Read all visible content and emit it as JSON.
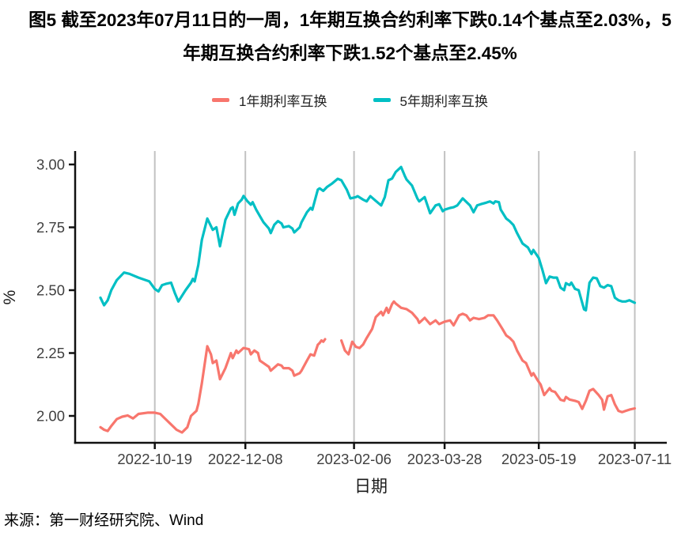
{
  "title": "图5  截至2023年07月11日的一周，1年期互换合约利率下跌0.14个基点至2.03%，5年期互换合约利率下跌1.52个基点至2.45%",
  "legend": [
    {
      "label": "1年期利率互换",
      "color": "#F8766D"
    },
    {
      "label": "5年期利率互换",
      "color": "#00BFC4"
    }
  ],
  "source": "来源：第一财经研究院、Wind",
  "chart_data": {
    "type": "line",
    "title": "图5 截至2023年07月11日的一周，1年期互换合约利率下跌0.14个基点至2.03%，5年期互换合约利率下跌1.52个基点至2.45%",
    "xlabel": "日期",
    "ylabel": "%",
    "ylim": [
      1.89,
      3.05
    ],
    "grid": "vertical-only",
    "grid_color": "#c2c2c2",
    "axis_color": "#111111",
    "tick_label_color": "#3f3f3f",
    "legend_position": "top-center",
    "y_ticks": [
      3.0,
      2.75,
      2.5,
      2.25,
      2.0
    ],
    "x_note": "t = days since 2022-09-19 (left edge of data); tick dates read off axis",
    "x_ticks": [
      {
        "t": 30,
        "label": "2022-10-19"
      },
      {
        "t": 80,
        "label": "2022-12-08"
      },
      {
        "t": 140,
        "label": "2023-02-06"
      },
      {
        "t": 190,
        "label": "2023-03-28"
      },
      {
        "t": 242,
        "label": "2023-05-19"
      },
      {
        "t": 295,
        "label": "2023-07-11"
      }
    ],
    "series": [
      {
        "id": "swap-1y",
        "name": "1年期利率互换",
        "color": "#F8766D",
        "last_value": 2.03,
        "weekly_change_bp": -0.14,
        "segments": [
          [
            [
              0,
              1.955
            ],
            [
              2,
              1.945
            ],
            [
              4,
              1.94
            ],
            [
              6,
              1.96
            ],
            [
              9,
              1.987
            ],
            [
              12,
              1.997
            ],
            [
              14,
              2.0
            ],
            [
              15,
              2.002
            ],
            [
              18,
              1.99
            ],
            [
              21,
              2.008
            ],
            [
              26,
              2.013
            ],
            [
              30,
              2.013
            ],
            [
              33,
              2.008
            ],
            [
              36,
              1.987
            ],
            [
              39,
              1.966
            ],
            [
              42,
              1.945
            ],
            [
              45,
              1.934
            ],
            [
              48,
              1.955
            ],
            [
              50,
              2.0
            ],
            [
              53,
              2.02
            ],
            [
              54,
              2.047
            ],
            [
              56,
              2.13
            ],
            [
              59,
              2.277
            ],
            [
              61,
              2.245
            ],
            [
              62,
              2.21
            ],
            [
              64,
              2.22
            ],
            [
              66,
              2.146
            ],
            [
              69,
              2.19
            ],
            [
              72,
              2.25
            ],
            [
              73,
              2.23
            ],
            [
              75,
              2.26
            ],
            [
              76,
              2.25
            ],
            [
              79,
              2.27
            ],
            [
              82,
              2.265
            ],
            [
              83,
              2.245
            ],
            [
              85,
              2.26
            ],
            [
              87,
              2.25
            ],
            [
              88,
              2.22
            ],
            [
              90,
              2.21
            ],
            [
              93,
              2.195
            ],
            [
              94,
              2.18
            ],
            [
              98,
              2.205
            ],
            [
              100,
              2.2
            ],
            [
              101,
              2.19
            ],
            [
              104,
              2.19
            ],
            [
              106,
              2.18
            ],
            [
              107,
              2.16
            ],
            [
              110,
              2.17
            ],
            [
              111,
              2.18
            ],
            [
              114,
              2.22
            ],
            [
              116,
              2.245
            ],
            [
              118,
              2.24
            ],
            [
              120,
              2.283
            ],
            [
              121,
              2.29
            ],
            [
              122,
              2.3
            ],
            [
              123,
              2.295
            ],
            [
              124,
              2.305
            ]
          ],
          [
            [
              133,
              2.3
            ],
            [
              135,
              2.26
            ],
            [
              137,
              2.245
            ],
            [
              139,
              2.295
            ],
            [
              141,
              2.275
            ],
            [
              143,
              2.27
            ],
            [
              145,
              2.284
            ],
            [
              147,
              2.31
            ],
            [
              150,
              2.346
            ],
            [
              152,
              2.393
            ],
            [
              155,
              2.414
            ],
            [
              156,
              2.4
            ],
            [
              158,
              2.43
            ],
            [
              159,
              2.41
            ],
            [
              161,
              2.445
            ],
            [
              162,
              2.455
            ],
            [
              163,
              2.447
            ],
            [
              166,
              2.43
            ],
            [
              169,
              2.425
            ],
            [
              172,
              2.41
            ],
            [
              175,
              2.385
            ],
            [
              176,
              2.37
            ],
            [
              179,
              2.39
            ],
            [
              182,
              2.365
            ],
            [
              185,
              2.38
            ],
            [
              187,
              2.365
            ],
            [
              190,
              2.375
            ],
            [
              193,
              2.38
            ],
            [
              195,
              2.36
            ],
            [
              198,
              2.4
            ],
            [
              200,
              2.406
            ],
            [
              202,
              2.4
            ],
            [
              204,
              2.38
            ],
            [
              206,
              2.39
            ],
            [
              209,
              2.385
            ],
            [
              212,
              2.39
            ],
            [
              214,
              2.4
            ],
            [
              217,
              2.4
            ],
            [
              219,
              2.38
            ],
            [
              222,
              2.345
            ],
            [
              224,
              2.32
            ],
            [
              226,
              2.31
            ],
            [
              228,
              2.295
            ],
            [
              230,
              2.26
            ],
            [
              233,
              2.22
            ],
            [
              235,
              2.21
            ],
            [
              238,
              2.16
            ],
            [
              239,
              2.17
            ],
            [
              241,
              2.146
            ],
            [
              242,
              2.135
            ],
            [
              243,
              2.125
            ],
            [
              245,
              2.083
            ],
            [
              248,
              2.11
            ],
            [
              249,
              2.1
            ],
            [
              251,
              2.095
            ],
            [
              254,
              2.064
            ],
            [
              256,
              2.06
            ],
            [
              257,
              2.075
            ],
            [
              259,
              2.065
            ],
            [
              262,
              2.06
            ],
            [
              264,
              2.055
            ],
            [
              266,
              2.028
            ],
            [
              268,
              2.06
            ],
            [
              270,
              2.1
            ],
            [
              272,
              2.107
            ],
            [
              275,
              2.083
            ],
            [
              277,
              2.064
            ],
            [
              278,
              2.025
            ],
            [
              280,
              2.078
            ],
            [
              282,
              2.083
            ],
            [
              284,
              2.046
            ],
            [
              286,
              2.02
            ],
            [
              288,
              2.015
            ],
            [
              290,
              2.02
            ],
            [
              292,
              2.025
            ],
            [
              295,
              2.03
            ]
          ]
        ]
      },
      {
        "id": "swap-5y",
        "name": "5年期利率互换",
        "color": "#00BFC4",
        "last_value": 2.45,
        "weekly_change_bp": -1.52,
        "segments": [
          [
            [
              0,
              2.47
            ],
            [
              2,
              2.44
            ],
            [
              4,
              2.46
            ],
            [
              6,
              2.5
            ],
            [
              9,
              2.54
            ],
            [
              13,
              2.57
            ],
            [
              16,
              2.565
            ],
            [
              21,
              2.55
            ],
            [
              27,
              2.535
            ],
            [
              30,
              2.505
            ],
            [
              32,
              2.495
            ],
            [
              34,
              2.52
            ],
            [
              36,
              2.525
            ],
            [
              39,
              2.53
            ],
            [
              41,
              2.49
            ],
            [
              43,
              2.455
            ],
            [
              47,
              2.5
            ],
            [
              50,
              2.53
            ],
            [
              51,
              2.545
            ],
            [
              52,
              2.535
            ],
            [
              54,
              2.6
            ],
            [
              56,
              2.7
            ],
            [
              59,
              2.785
            ],
            [
              62,
              2.74
            ],
            [
              64,
              2.75
            ],
            [
              66,
              2.675
            ],
            [
              69,
              2.78
            ],
            [
              72,
              2.825
            ],
            [
              73,
              2.83
            ],
            [
              74,
              2.8
            ],
            [
              76,
              2.845
            ],
            [
              78,
              2.86
            ],
            [
              79,
              2.875
            ],
            [
              81,
              2.855
            ],
            [
              83,
              2.84
            ],
            [
              84,
              2.85
            ],
            [
              86,
              2.82
            ],
            [
              88,
              2.795
            ],
            [
              90,
              2.77
            ],
            [
              93,
              2.745
            ],
            [
              94,
              2.727
            ],
            [
              96,
              2.76
            ],
            [
              98,
              2.775
            ],
            [
              100,
              2.765
            ],
            [
              101,
              2.75
            ],
            [
              104,
              2.755
            ],
            [
              106,
              2.745
            ],
            [
              107,
              2.73
            ],
            [
              110,
              2.75
            ],
            [
              111,
              2.77
            ],
            [
              114,
              2.81
            ],
            [
              116,
              2.827
            ],
            [
              117,
              2.82
            ],
            [
              120,
              2.9
            ],
            [
              121,
              2.905
            ],
            [
              123,
              2.895
            ],
            [
              125,
              2.91
            ],
            [
              128,
              2.925
            ],
            [
              131,
              2.943
            ],
            [
              133,
              2.937
            ],
            [
              136,
              2.9
            ],
            [
              138,
              2.865
            ],
            [
              141,
              2.87
            ],
            [
              142,
              2.874
            ],
            [
              145,
              2.86
            ],
            [
              147,
              2.853
            ],
            [
              149,
              2.874
            ],
            [
              152,
              2.855
            ],
            [
              155,
              2.837
            ],
            [
              157,
              2.87
            ],
            [
              159,
              2.937
            ],
            [
              161,
              2.944
            ],
            [
              163,
              2.97
            ],
            [
              166,
              2.99
            ],
            [
              168,
              2.955
            ],
            [
              169,
              2.94
            ],
            [
              172,
              2.916
            ],
            [
              175,
              2.864
            ],
            [
              176,
              2.853
            ],
            [
              179,
              2.87
            ],
            [
              182,
              2.806
            ],
            [
              185,
              2.837
            ],
            [
              187,
              2.842
            ],
            [
              189,
              2.814
            ],
            [
              190,
              2.82
            ],
            [
              193,
              2.827
            ],
            [
              195,
              2.83
            ],
            [
              197,
              2.837
            ],
            [
              200,
              2.865
            ],
            [
              204,
              2.837
            ],
            [
              206,
              2.81
            ],
            [
              208,
              2.837
            ],
            [
              210,
              2.842
            ],
            [
              213,
              2.848
            ],
            [
              215,
              2.853
            ],
            [
              217,
              2.845
            ],
            [
              218,
              2.853
            ],
            [
              220,
              2.85
            ],
            [
              221,
              2.82
            ],
            [
              224,
              2.785
            ],
            [
              226,
              2.774
            ],
            [
              228,
              2.759
            ],
            [
              230,
              2.727
            ],
            [
              233,
              2.686
            ],
            [
              236,
              2.67
            ],
            [
              238,
              2.644
            ],
            [
              239,
              2.66
            ],
            [
              242,
              2.628
            ],
            [
              244,
              2.58
            ],
            [
              246,
              2.528
            ],
            [
              248,
              2.554
            ],
            [
              250,
              2.55
            ],
            [
              252,
              2.55
            ],
            [
              254,
              2.51
            ],
            [
              256,
              2.5
            ],
            [
              257,
              2.528
            ],
            [
              259,
              2.52
            ],
            [
              260,
              2.53
            ],
            [
              262,
              2.505
            ],
            [
              264,
              2.5
            ],
            [
              267,
              2.424
            ],
            [
              268,
              2.42
            ],
            [
              270,
              2.53
            ],
            [
              272,
              2.55
            ],
            [
              274,
              2.547
            ],
            [
              276,
              2.516
            ],
            [
              278,
              2.51
            ],
            [
              280,
              2.52
            ],
            [
              282,
              2.516
            ],
            [
              284,
              2.47
            ],
            [
              286,
              2.46
            ],
            [
              288,
              2.455
            ],
            [
              290,
              2.455
            ],
            [
              292,
              2.46
            ],
            [
              295,
              2.45
            ]
          ]
        ]
      }
    ]
  }
}
